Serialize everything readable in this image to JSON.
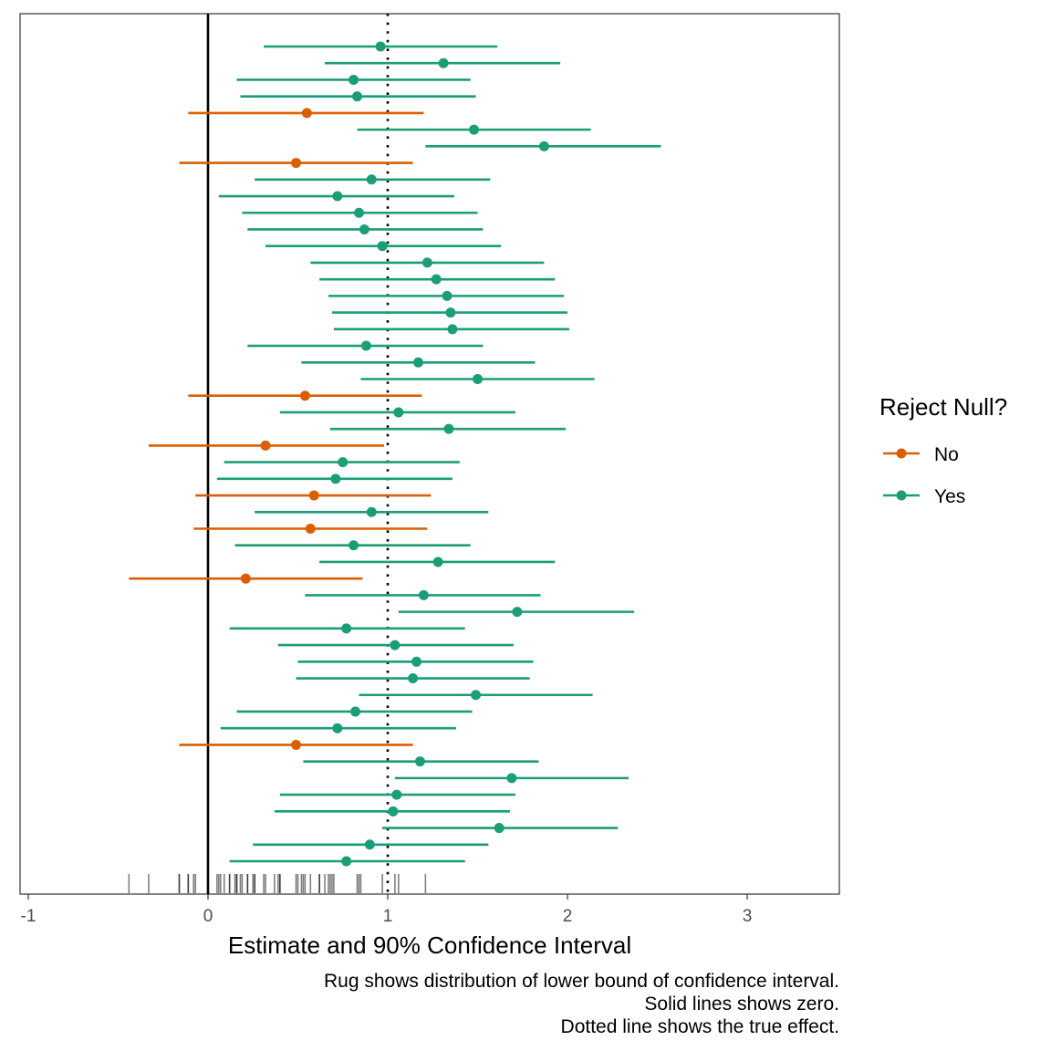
{
  "chart_data": {
    "type": "forest",
    "xlabel": "Estimate and 90% Confidence Interval",
    "xlim": [
      -1,
      3.5
    ],
    "xticks": [
      -1,
      0,
      1,
      2,
      3
    ],
    "zero_line": 0,
    "true_effect": 1,
    "grid": false,
    "legend": {
      "title": "Reject Null?",
      "position": "right",
      "entries": [
        {
          "label": "No",
          "color": "#D95F02"
        },
        {
          "label": "Yes",
          "color": "#1B9E77"
        }
      ]
    },
    "caption": [
      "Rug shows distribution of lower bound of confidence interval.",
      "Solid lines shows zero.",
      "Dotted line shows the true effect."
    ],
    "intervals": [
      {
        "est": 0.96,
        "lo": 0.31,
        "hi": 1.61,
        "reject": "Yes"
      },
      {
        "est": 1.31,
        "lo": 0.65,
        "hi": 1.96,
        "reject": "Yes"
      },
      {
        "est": 0.81,
        "lo": 0.16,
        "hi": 1.46,
        "reject": "Yes"
      },
      {
        "est": 0.83,
        "lo": 0.18,
        "hi": 1.49,
        "reject": "Yes"
      },
      {
        "est": 0.55,
        "lo": -0.11,
        "hi": 1.2,
        "reject": "No"
      },
      {
        "est": 1.48,
        "lo": 0.83,
        "hi": 2.13,
        "reject": "Yes"
      },
      {
        "est": 1.87,
        "lo": 1.21,
        "hi": 2.52,
        "reject": "Yes"
      },
      {
        "est": 0.49,
        "lo": -0.16,
        "hi": 1.14,
        "reject": "No"
      },
      {
        "est": 0.91,
        "lo": 0.26,
        "hi": 1.57,
        "reject": "Yes"
      },
      {
        "est": 0.72,
        "lo": 0.06,
        "hi": 1.37,
        "reject": "Yes"
      },
      {
        "est": 0.84,
        "lo": 0.19,
        "hi": 1.5,
        "reject": "Yes"
      },
      {
        "est": 0.87,
        "lo": 0.22,
        "hi": 1.53,
        "reject": "Yes"
      },
      {
        "est": 0.97,
        "lo": 0.32,
        "hi": 1.63,
        "reject": "Yes"
      },
      {
        "est": 1.22,
        "lo": 0.57,
        "hi": 1.87,
        "reject": "Yes"
      },
      {
        "est": 1.27,
        "lo": 0.62,
        "hi": 1.93,
        "reject": "Yes"
      },
      {
        "est": 1.33,
        "lo": 0.67,
        "hi": 1.98,
        "reject": "Yes"
      },
      {
        "est": 1.35,
        "lo": 0.69,
        "hi": 2.0,
        "reject": "Yes"
      },
      {
        "est": 1.36,
        "lo": 0.7,
        "hi": 2.01,
        "reject": "Yes"
      },
      {
        "est": 0.88,
        "lo": 0.22,
        "hi": 1.53,
        "reject": "Yes"
      },
      {
        "est": 1.17,
        "lo": 0.52,
        "hi": 1.82,
        "reject": "Yes"
      },
      {
        "est": 1.5,
        "lo": 0.85,
        "hi": 2.15,
        "reject": "Yes"
      },
      {
        "est": 0.54,
        "lo": -0.11,
        "hi": 1.19,
        "reject": "No"
      },
      {
        "est": 1.06,
        "lo": 0.4,
        "hi": 1.71,
        "reject": "Yes"
      },
      {
        "est": 1.34,
        "lo": 0.68,
        "hi": 1.99,
        "reject": "Yes"
      },
      {
        "est": 0.32,
        "lo": -0.33,
        "hi": 0.98,
        "reject": "No"
      },
      {
        "est": 0.75,
        "lo": 0.09,
        "hi": 1.4,
        "reject": "Yes"
      },
      {
        "est": 0.71,
        "lo": 0.05,
        "hi": 1.36,
        "reject": "Yes"
      },
      {
        "est": 0.59,
        "lo": -0.07,
        "hi": 1.24,
        "reject": "No"
      },
      {
        "est": 0.91,
        "lo": 0.26,
        "hi": 1.56,
        "reject": "Yes"
      },
      {
        "est": 0.57,
        "lo": -0.08,
        "hi": 1.22,
        "reject": "No"
      },
      {
        "est": 0.81,
        "lo": 0.15,
        "hi": 1.46,
        "reject": "Yes"
      },
      {
        "est": 1.28,
        "lo": 0.62,
        "hi": 1.93,
        "reject": "Yes"
      },
      {
        "est": 0.21,
        "lo": -0.44,
        "hi": 0.86,
        "reject": "No"
      },
      {
        "est": 1.2,
        "lo": 0.54,
        "hi": 1.85,
        "reject": "Yes"
      },
      {
        "est": 1.72,
        "lo": 1.06,
        "hi": 2.37,
        "reject": "Yes"
      },
      {
        "est": 0.77,
        "lo": 0.12,
        "hi": 1.43,
        "reject": "Yes"
      },
      {
        "est": 1.04,
        "lo": 0.39,
        "hi": 1.7,
        "reject": "Yes"
      },
      {
        "est": 1.16,
        "lo": 0.5,
        "hi": 1.81,
        "reject": "Yes"
      },
      {
        "est": 1.14,
        "lo": 0.49,
        "hi": 1.79,
        "reject": "Yes"
      },
      {
        "est": 1.49,
        "lo": 0.84,
        "hi": 2.14,
        "reject": "Yes"
      },
      {
        "est": 0.82,
        "lo": 0.16,
        "hi": 1.47,
        "reject": "Yes"
      },
      {
        "est": 0.72,
        "lo": 0.07,
        "hi": 1.38,
        "reject": "Yes"
      },
      {
        "est": 0.49,
        "lo": -0.16,
        "hi": 1.14,
        "reject": "No"
      },
      {
        "est": 1.18,
        "lo": 0.53,
        "hi": 1.84,
        "reject": "Yes"
      },
      {
        "est": 1.69,
        "lo": 1.04,
        "hi": 2.34,
        "reject": "Yes"
      },
      {
        "est": 1.05,
        "lo": 0.4,
        "hi": 1.71,
        "reject": "Yes"
      },
      {
        "est": 1.03,
        "lo": 0.37,
        "hi": 1.68,
        "reject": "Yes"
      },
      {
        "est": 1.62,
        "lo": 0.97,
        "hi": 2.28,
        "reject": "Yes"
      },
      {
        "est": 0.9,
        "lo": 0.25,
        "hi": 1.56,
        "reject": "Yes"
      },
      {
        "est": 0.77,
        "lo": 0.12,
        "hi": 1.43,
        "reject": "Yes"
      }
    ]
  }
}
